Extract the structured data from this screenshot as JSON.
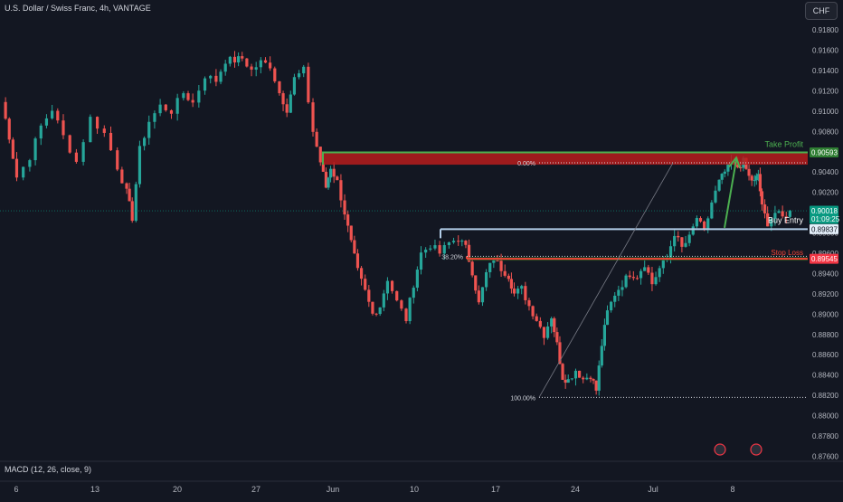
{
  "header": {
    "symbol_title": "U.S. Dollar / Swiss Franc, 4h, VANTAGE",
    "currency_button": "CHF"
  },
  "indicator": {
    "macd_label": "MACD (12, 26, close, 9)"
  },
  "colors": {
    "background": "#131722",
    "bull": "#26a69a",
    "bear": "#ef5350",
    "take_profit": "#4caf50",
    "stop_zone": "#b71c1c",
    "entry_line": "#b2cde8",
    "current_price": "#089981",
    "arrow": "#4caf50"
  },
  "chart_data": {
    "type": "candlestick",
    "symbol": "U.S. Dollar / Swiss Franc",
    "timeframe": "4h",
    "price_axis_ticks": [
      "0.91800",
      "0.91600",
      "0.91400",
      "0.91200",
      "0.91000",
      "0.90800",
      "0.90600",
      "0.90400",
      "0.90200",
      "0.90000",
      "0.89800",
      "0.89600",
      "0.89400",
      "0.89200",
      "0.89000",
      "0.88800",
      "0.88600",
      "0.88400",
      "0.88200",
      "0.88000",
      "0.87800",
      "0.87600"
    ],
    "time_axis_ticks": [
      "6",
      "13",
      "20",
      "27",
      "Jun",
      "10",
      "17",
      "24",
      "Jul",
      "8"
    ],
    "ylim": [
      0.8753,
      0.9193
    ],
    "price_path": [
      [
        0,
        0.9109
      ],
      [
        0.8,
        0.9075
      ],
      [
        1.6,
        0.9035
      ],
      [
        3,
        0.9055
      ],
      [
        4.2,
        0.9085
      ],
      [
        5.4,
        0.9102
      ],
      [
        6.6,
        0.9075
      ],
      [
        8,
        0.905
      ],
      [
        9.5,
        0.9093
      ],
      [
        11,
        0.9078
      ],
      [
        12.4,
        0.9045
      ],
      [
        13.4,
        0.902
      ],
      [
        14,
        0.8995
      ],
      [
        14.8,
        0.9062
      ],
      [
        15.8,
        0.909
      ],
      [
        17,
        0.9105
      ],
      [
        18.2,
        0.91
      ],
      [
        19.5,
        0.9118
      ],
      [
        20.5,
        0.9108
      ],
      [
        21.8,
        0.9135
      ],
      [
        23,
        0.913
      ],
      [
        24,
        0.915
      ],
      [
        25,
        0.915
      ],
      [
        25.8,
        0.9152
      ],
      [
        26.8,
        0.914
      ],
      [
        27.8,
        0.9148
      ],
      [
        28.8,
        0.9145
      ],
      [
        29.8,
        0.9118
      ],
      [
        30.6,
        0.9102
      ],
      [
        31.4,
        0.9132
      ],
      [
        32.4,
        0.914
      ],
      [
        33.4,
        0.908
      ],
      [
        34.2,
        0.905
      ],
      [
        34.8,
        0.9025
      ],
      [
        35.3,
        0.9045
      ],
      [
        36,
        0.903
      ],
      [
        36.8,
        0.9
      ],
      [
        37.5,
        0.897
      ],
      [
        38.2,
        0.8942
      ],
      [
        39,
        0.8922
      ],
      [
        39.8,
        0.89
      ],
      [
        40.6,
        0.8908
      ],
      [
        41.4,
        0.8935
      ],
      [
        42.4,
        0.8912
      ],
      [
        43.4,
        0.8895
      ],
      [
        44.2,
        0.893
      ],
      [
        45,
        0.896
      ],
      [
        46,
        0.8968
      ],
      [
        47,
        0.896
      ],
      [
        48,
        0.897
      ],
      [
        49,
        0.8975
      ],
      [
        49.8,
        0.8965
      ],
      [
        50.5,
        0.8942
      ],
      [
        51.2,
        0.891
      ],
      [
        52,
        0.894
      ],
      [
        52.8,
        0.8955
      ],
      [
        53.6,
        0.8945
      ],
      [
        54.4,
        0.8938
      ],
      [
        55,
        0.892
      ],
      [
        55.8,
        0.8925
      ],
      [
        56.6,
        0.8908
      ],
      [
        57.4,
        0.8895
      ],
      [
        58.2,
        0.888
      ],
      [
        59,
        0.8898
      ],
      [
        59.6,
        0.887
      ],
      [
        60.2,
        0.8838
      ],
      [
        60.8,
        0.8835
      ],
      [
        61.6,
        0.8845
      ],
      [
        62.4,
        0.8836
      ],
      [
        63.2,
        0.884
      ],
      [
        63.8,
        0.8825
      ],
      [
        64.4,
        0.887
      ],
      [
        65,
        0.8902
      ],
      [
        65.8,
        0.892
      ],
      [
        66.6,
        0.893
      ],
      [
        67.4,
        0.894
      ],
      [
        68.2,
        0.8938
      ],
      [
        69,
        0.895
      ],
      [
        69.8,
        0.893
      ],
      [
        70.6,
        0.8945
      ],
      [
        71.4,
        0.8955
      ],
      [
        72.2,
        0.898
      ],
      [
        73,
        0.8965
      ],
      [
        73.8,
        0.8975
      ],
      [
        74.6,
        0.8995
      ],
      [
        75.4,
        0.898
      ],
      [
        76.2,
        0.901
      ],
      [
        77,
        0.903
      ],
      [
        77.6,
        0.904
      ],
      [
        78.3,
        0.905
      ],
      [
        79,
        0.9045
      ],
      [
        79.6,
        0.905
      ],
      [
        80.2,
        0.9035
      ],
      [
        80.8,
        0.903
      ],
      [
        81.2,
        0.9038
      ],
      [
        81.6,
        0.9005
      ],
      [
        82.2,
        0.899
      ],
      [
        83,
        0.9
      ],
      [
        83.8,
        0.8995
      ],
      [
        84.6,
        0.9002
      ]
    ],
    "current_price": "0.90018",
    "countdown": "01:09:25",
    "entry_price": "0.89837",
    "take_profit_price": "0.90593",
    "stop_loss_price": "0.89545",
    "fib_levels": [
      {
        "label": "0.00%",
        "value": 0.9049
      },
      {
        "label": "38.20%",
        "value": 0.8957
      },
      {
        "label": "100.00%",
        "value": 0.8818
      }
    ],
    "annotations": {
      "take_profit": "Take Profit",
      "buy_entry": "Buy Entry",
      "stop_loss": "Stop Loss"
    },
    "indicator": "MACD (12, 26, close, 9)"
  }
}
